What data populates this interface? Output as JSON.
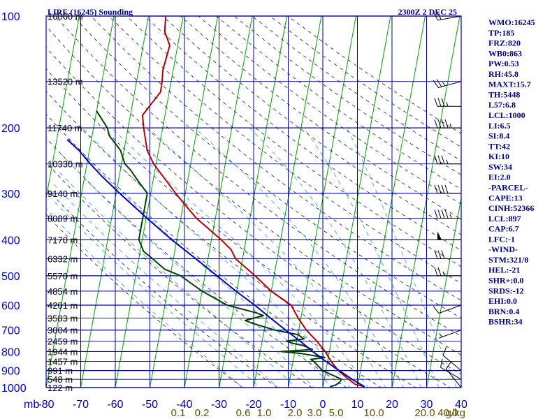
{
  "chart_data": {
    "type": "line",
    "title": "LIRE (16245) Sounding",
    "timestamp": "2300Z  2 DEC 25",
    "pressure_axis_unit": "mb",
    "pressure_ticks": [
      1000,
      900,
      800,
      700,
      600,
      500,
      400,
      300,
      200,
      100
    ],
    "height_labels": [
      {
        "p": 100,
        "label": "16060 m"
      },
      {
        "p": 150,
        "label": "13520 m"
      },
      {
        "p": 200,
        "label": "11740 m"
      },
      {
        "p": 250,
        "label": "10330 m"
      },
      {
        "p": 300,
        "label": "9140 m"
      },
      {
        "p": 350,
        "label": "8089 m"
      },
      {
        "p": 400,
        "label": "7170 m"
      },
      {
        "p": 450,
        "label": "6332 m"
      },
      {
        "p": 500,
        "label": "5570 m"
      },
      {
        "p": 550,
        "label": "4854 m"
      },
      {
        "p": 600,
        "label": "4201 m"
      },
      {
        "p": 650,
        "label": "3583 m"
      },
      {
        "p": 700,
        "label": "3004 m"
      },
      {
        "p": 750,
        "label": "2459 m"
      },
      {
        "p": 800,
        "label": "1944 m"
      },
      {
        "p": 850,
        "label": "1457 m"
      },
      {
        "p": 900,
        "label": "991 m"
      },
      {
        "p": 950,
        "label": "548 m"
      },
      {
        "p": 1000,
        "label": "122 m"
      }
    ],
    "temperature_ticks": [
      "-80",
      "-70",
      "-60",
      "-50",
      "-40",
      "-30",
      "-20",
      "-10",
      "0",
      "10",
      "20",
      "30",
      "40"
    ],
    "mixing_ratio_labels": [
      "0.1",
      "0.2",
      "0.6",
      "1.0",
      "2.0",
      "3.0",
      "5.0",
      "10.0",
      "20.0",
      "40.0"
    ],
    "mixing_ratio_unit": "g/kg",
    "xlim": [
      -80,
      40
    ],
    "ylim": [
      1000,
      100
    ],
    "series": [
      {
        "key": "temperature",
        "color": "#b40000",
        "points": [
          [
            994,
            12
          ],
          [
            980,
            9.2
          ],
          [
            950,
            7.0
          ],
          [
            900,
            3.6
          ],
          [
            850,
            1.0
          ],
          [
            800,
            -1.2
          ],
          [
            750,
            -4.2
          ],
          [
            700,
            -7.8
          ],
          [
            650,
            -10.8
          ],
          [
            600,
            -13.5
          ],
          [
            550,
            -20
          ],
          [
            500,
            -25.5
          ],
          [
            450,
            -32
          ],
          [
            425,
            -33.8
          ],
          [
            400,
            -37.2
          ],
          [
            350,
            -45.5
          ],
          [
            320,
            -49.8
          ],
          [
            300,
            -52.8
          ],
          [
            260,
            -59
          ],
          [
            250,
            -60.7
          ],
          [
            230,
            -63.3
          ],
          [
            200,
            -65.5
          ],
          [
            185,
            -66.5
          ],
          [
            175,
            -65.0
          ],
          [
            160,
            -62.5
          ],
          [
            150,
            -62.6
          ],
          [
            140,
            -63
          ],
          [
            120,
            -62.3
          ],
          [
            110,
            -64.5
          ],
          [
            100,
            -65
          ]
        ]
      },
      {
        "key": "dewpoint",
        "color": "#004000",
        "points": [
          [
            994,
            2
          ],
          [
            985,
            3.5
          ],
          [
            970,
            4.5
          ],
          [
            950,
            5
          ],
          [
            900,
            -1
          ],
          [
            850,
            -4
          ],
          [
            840,
            -5
          ],
          [
            830,
            -1
          ],
          [
            810,
            -8
          ],
          [
            800,
            -14
          ],
          [
            790,
            -5
          ],
          [
            770,
            -8
          ],
          [
            760,
            -11
          ],
          [
            750,
            -13
          ],
          [
            740,
            -8
          ],
          [
            720,
            -10
          ],
          [
            700,
            -17
          ],
          [
            670,
            -24
          ],
          [
            660,
            -26
          ],
          [
            640,
            -21
          ],
          [
            630,
            -23
          ],
          [
            600,
            -32
          ],
          [
            550,
            -40
          ],
          [
            500,
            -47
          ],
          [
            480,
            -52
          ],
          [
            450,
            -56
          ],
          [
            430,
            -59
          ],
          [
            400,
            -61
          ],
          [
            380,
            -61
          ],
          [
            350,
            -61
          ],
          [
            320,
            -61
          ],
          [
            300,
            -61
          ],
          [
            280,
            -64
          ],
          [
            260,
            -67
          ],
          [
            250,
            -69
          ],
          [
            240,
            -70
          ],
          [
            230,
            -71
          ],
          [
            210,
            -75
          ],
          [
            200,
            -76
          ],
          [
            180,
            -80
          ]
        ]
      },
      {
        "key": "parcel",
        "color": "#0000c0",
        "points": [
          [
            994,
            12
          ],
          [
            950,
            8
          ],
          [
            900,
            3.9
          ],
          [
            850,
            -0.5
          ],
          [
            800,
            -4.8
          ],
          [
            750,
            -9
          ],
          [
            700,
            -13.8
          ],
          [
            650,
            -18.8
          ],
          [
            600,
            -24
          ],
          [
            550,
            -30.2
          ],
          [
            500,
            -36.5
          ],
          [
            450,
            -43.5
          ],
          [
            400,
            -51.5
          ],
          [
            350,
            -59.8
          ],
          [
            300,
            -69
          ],
          [
            270,
            -75
          ],
          [
            250,
            -79
          ],
          [
            230,
            -83
          ],
          [
            215,
            -87
          ]
        ]
      }
    ],
    "wind_barbs": [
      {
        "p": 1000,
        "dir": 321,
        "spd": 8
      },
      {
        "p": 950,
        "dir": 300,
        "spd": 10
      },
      {
        "p": 900,
        "dir": 310,
        "spd": 8
      },
      {
        "p": 700,
        "dir": 250,
        "spd": 5
      },
      {
        "p": 600,
        "dir": 250,
        "spd": 10
      },
      {
        "p": 500,
        "dir": 270,
        "spd": 25
      },
      {
        "p": 450,
        "dir": 270,
        "spd": 30
      },
      {
        "p": 400,
        "dir": 270,
        "spd": 50
      },
      {
        "p": 350,
        "dir": 270,
        "spd": 45
      },
      {
        "p": 300,
        "dir": 270,
        "spd": 40
      },
      {
        "p": 250,
        "dir": 270,
        "spd": 35
      },
      {
        "p": 200,
        "dir": 270,
        "spd": 45
      },
      {
        "p": 175,
        "dir": 270,
        "spd": 35
      },
      {
        "p": 150,
        "dir": 255,
        "spd": 25
      },
      {
        "p": 100,
        "dir": 260,
        "spd": 20
      }
    ],
    "indices": [
      "WMO:16245",
      "TP:185",
      "FRZ:820",
      "WB0:863",
      "PW:0.53",
      "RH:45.8",
      "MAXT:15.7",
      "TH:5448",
      "L57:6.8",
      "LCL:1000",
      "LI:6.5",
      "SI:8.4",
      "TT:42",
      "KI:10",
      "SW:34",
      "EI:2.0",
      "-PARCEL-",
      "CAPE:13",
      "CINH:52366",
      "LCL:897",
      "CAP:6.7",
      "LFC:-1",
      "-WIND-",
      "STM:321/8",
      "HEL:-21",
      "SHR+:0.0",
      "SRDS:-12",
      "EHI:0.0",
      "BRN:0.4",
      "BSHR:34"
    ],
    "colors": {
      "grid": "#0000a0",
      "isotherm": "#00a000",
      "dry_adiabat": "#202020",
      "moist_adiabat": "#3090e0",
      "mixing_label": "#605000",
      "axis_text": "#0000c0",
      "title_text": "#000080"
    }
  }
}
